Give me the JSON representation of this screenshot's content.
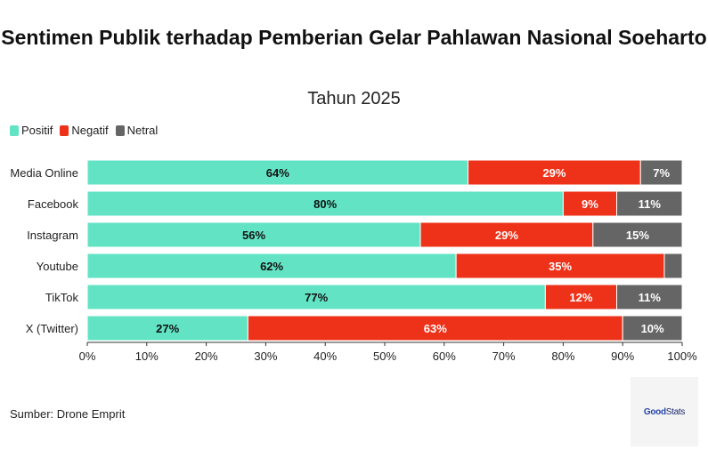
{
  "title": "Sentimen Publik terhadap Pemberian Gelar Pahlawan Nasional Soeharto",
  "subtitle": "Tahun 2025",
  "source": "Sumber: Drone Emprit",
  "logo": {
    "part1": "Good",
    "part2": "Stats"
  },
  "chart_data": {
    "type": "bar",
    "orientation": "horizontal",
    "stacked": true,
    "title": "Sentimen Publik terhadap Pemberian Gelar Pahlawan Nasional Soeharto",
    "subtitle": "Tahun 2025",
    "categories": [
      "Media Online",
      "Facebook",
      "Instagram",
      "Youtube",
      "TikTok",
      "X (Twitter)"
    ],
    "series": [
      {
        "name": "Positif",
        "color": "#62e3c4",
        "values": [
          64,
          80,
          56,
          62,
          77,
          27
        ],
        "labels": [
          "64%",
          "80%",
          "56%",
          "62%",
          "77%",
          "27%"
        ]
      },
      {
        "name": "Negatif",
        "color": "#ee3119",
        "values": [
          29,
          9,
          29,
          35,
          12,
          63
        ],
        "labels": [
          "29%",
          "9%",
          "29%",
          "35%",
          "12%",
          "63%"
        ]
      },
      {
        "name": "Netral",
        "color": "#656565",
        "values": [
          7,
          11,
          15,
          3,
          11,
          10
        ],
        "labels": [
          "7%",
          "11%",
          "15%",
          "",
          "11%",
          "10%"
        ]
      }
    ],
    "xlim": [
      0,
      100
    ],
    "xticks": [
      "0%",
      "10%",
      "20%",
      "30%",
      "40%",
      "50%",
      "60%",
      "70%",
      "80%",
      "90%",
      "100%"
    ],
    "legend_position": "top-left",
    "grid": false
  }
}
